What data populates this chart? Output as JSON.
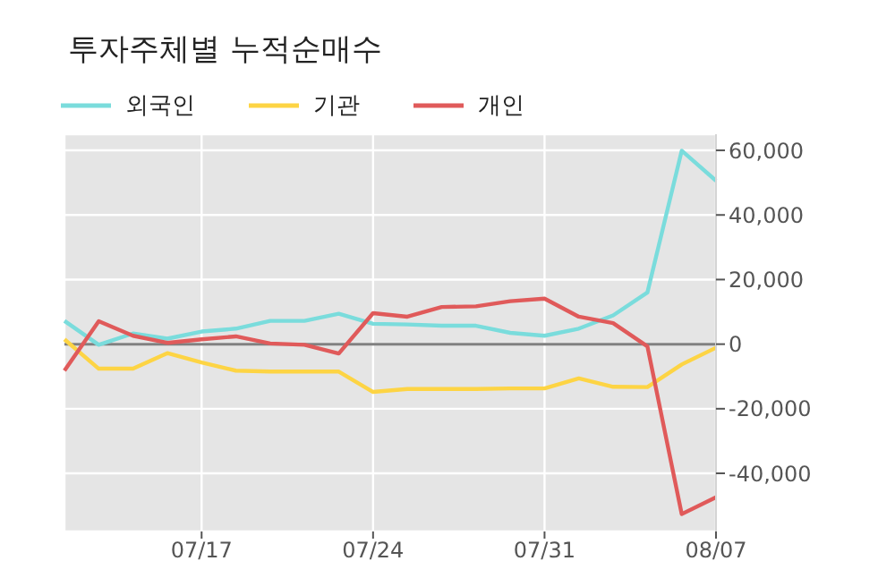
{
  "chart_data": {
    "type": "line",
    "title": "투자주체별 누적순매수",
    "categories": [
      null,
      null,
      null,
      null,
      "07/17",
      null,
      null,
      null,
      null,
      "07/24",
      null,
      null,
      null,
      null,
      "07/31",
      null,
      null,
      null,
      null,
      "08/07"
    ],
    "series": [
      {
        "name": "외국인",
        "color": "#7adcdc",
        "values": [
          7200,
          -200,
          3300,
          1700,
          3900,
          4800,
          7200,
          7200,
          9400,
          6300,
          6100,
          5700,
          5700,
          3500,
          2600,
          4800,
          8900,
          16000,
          59900,
          50600
        ]
      },
      {
        "name": "기관",
        "color": "#fdd444",
        "values": [
          1500,
          -7600,
          -7600,
          -2800,
          -5700,
          -8200,
          -8500,
          -8500,
          -8500,
          -14800,
          -13900,
          -13900,
          -13900,
          -13700,
          -13700,
          -10600,
          -13200,
          -13300,
          -6300,
          -1100
        ]
      },
      {
        "name": "개인",
        "color": "#e05a5a",
        "values": [
          -8200,
          7100,
          2600,
          400,
          1500,
          2400,
          200,
          -200,
          -2900,
          9600,
          8500,
          11500,
          11700,
          13300,
          14100,
          8500,
          6500,
          -700,
          -52600,
          -47400
        ]
      }
    ],
    "ylim": [
      -58000,
      65000
    ],
    "yticks": [
      {
        "value": -40000,
        "label": "-40,000"
      },
      {
        "value": -20000,
        "label": "-20,000"
      },
      0,
      {
        "value": 20000,
        "label": "20,000"
      },
      {
        "value": 40000,
        "label": "40,000"
      },
      {
        "value": 60000,
        "label": "60,000"
      }
    ],
    "ref_lines": [
      {
        "axis": "y",
        "value": 0,
        "color": "#808080"
      }
    ],
    "grid": true,
    "legend": "top left",
    "line_style": "solid",
    "marker": "none"
  }
}
